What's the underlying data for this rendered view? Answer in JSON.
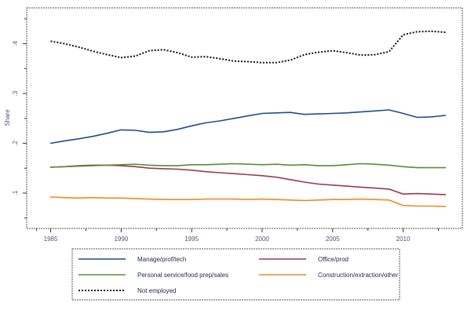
{
  "chart_data": {
    "type": "line",
    "title": "",
    "xlabel": "",
    "ylabel": "Share",
    "xlim": [
      1983.3,
      2014.2
    ],
    "ylim": [
      0.029,
      0.472
    ],
    "x_ticks": [
      1985,
      1990,
      1995,
      2000,
      2005,
      2010
    ],
    "x_tick_labels": [
      "1985",
      "1990",
      "1995",
      "2000",
      "2005",
      "2010"
    ],
    "y_ticks": [
      0.1,
      0.2,
      0.3,
      0.4
    ],
    "y_tick_labels": [
      ".1",
      ".2",
      ".3",
      ".4"
    ],
    "grid": false,
    "legend_position": "bottom",
    "x": [
      1985,
      1986,
      1987,
      1988,
      1989,
      1990,
      1991,
      1992,
      1993,
      1994,
      1995,
      1996,
      1997,
      1998,
      1999,
      2000,
      2001,
      2002,
      2003,
      2004,
      2005,
      2006,
      2007,
      2008,
      2009,
      2010,
      2011,
      2012,
      2013
    ],
    "series": [
      {
        "name": "Manage/prof/tech",
        "color": "#1f4e8c",
        "style": "solid",
        "values": [
          0.2,
          0.205,
          0.209,
          0.214,
          0.22,
          0.227,
          0.226,
          0.222,
          0.223,
          0.228,
          0.235,
          0.241,
          0.245,
          0.25,
          0.255,
          0.26,
          0.261,
          0.262,
          0.258,
          0.259,
          0.26,
          0.261,
          0.263,
          0.265,
          0.267,
          0.26,
          0.252,
          0.253,
          0.256
        ]
      },
      {
        "name": "Office/prod",
        "color": "#9b3a4a",
        "style": "solid",
        "values": [
          0.152,
          0.153,
          0.155,
          0.156,
          0.156,
          0.155,
          0.153,
          0.15,
          0.149,
          0.148,
          0.146,
          0.143,
          0.141,
          0.139,
          0.137,
          0.135,
          0.132,
          0.127,
          0.122,
          0.118,
          0.116,
          0.114,
          0.112,
          0.11,
          0.108,
          0.098,
          0.099,
          0.098,
          0.097
        ]
      },
      {
        "name": "Personal service/food prep/sales",
        "color": "#5a8a3a",
        "style": "solid",
        "values": [
          0.152,
          0.153,
          0.154,
          0.155,
          0.156,
          0.157,
          0.158,
          0.156,
          0.155,
          0.155,
          0.157,
          0.157,
          0.158,
          0.159,
          0.158,
          0.157,
          0.158,
          0.156,
          0.157,
          0.155,
          0.155,
          0.157,
          0.159,
          0.158,
          0.156,
          0.153,
          0.151,
          0.151,
          0.151
        ]
      },
      {
        "name": "Construction/extraction/other",
        "color": "#f08a24",
        "style": "solid",
        "values": [
          0.092,
          0.091,
          0.09,
          0.091,
          0.09,
          0.09,
          0.089,
          0.088,
          0.087,
          0.087,
          0.087,
          0.088,
          0.088,
          0.088,
          0.087,
          0.088,
          0.087,
          0.086,
          0.085,
          0.086,
          0.087,
          0.087,
          0.088,
          0.087,
          0.086,
          0.075,
          0.074,
          0.074,
          0.073
        ]
      },
      {
        "name": "Not employed",
        "color": "#111111",
        "style": "dotted",
        "values": [
          0.405,
          0.4,
          0.393,
          0.385,
          0.378,
          0.372,
          0.375,
          0.386,
          0.388,
          0.382,
          0.373,
          0.374,
          0.37,
          0.365,
          0.364,
          0.362,
          0.362,
          0.367,
          0.378,
          0.383,
          0.386,
          0.382,
          0.377,
          0.378,
          0.384,
          0.418,
          0.424,
          0.425,
          0.423
        ]
      }
    ]
  }
}
